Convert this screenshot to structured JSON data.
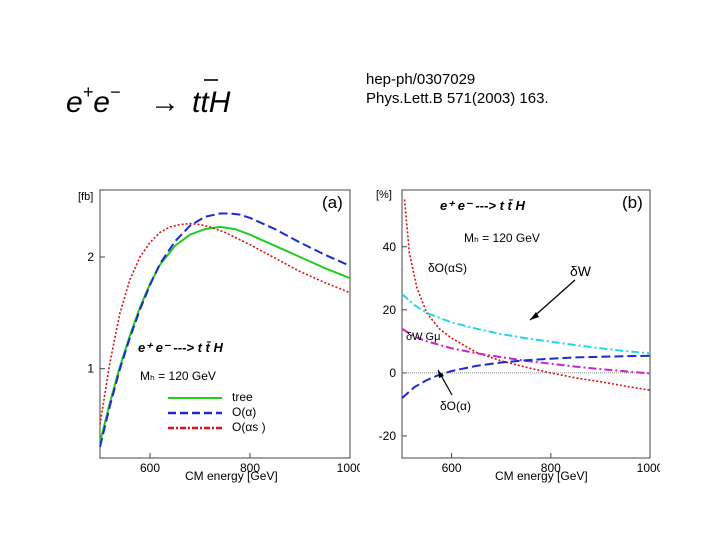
{
  "header": {
    "formula": {
      "lhs_e1": "e",
      "lhs_sup1": "+",
      "lhs_e2": "e",
      "lhs_sup2": "−",
      "arrow": "→",
      "t1": "t",
      "t2": "t",
      "h": "H"
    },
    "reference_line1": "hep-ph/0307029",
    "reference_line2": "Phys.Lett.B 571(2003) 163."
  },
  "chart_data": [
    {
      "type": "line",
      "panel_label": "(a)",
      "title": "",
      "ylabel": "[fb]",
      "xlabel": "CM energy [GeV]",
      "xlim": [
        500,
        1000
      ],
      "ylim": [
        0.2,
        2.6
      ],
      "x_ticks": [
        600,
        800,
        1000
      ],
      "y_ticks": [
        1,
        2
      ],
      "process_label": "e⁺ e⁻ ---> t t̄ H",
      "mass_label": "Mₕ = 120 GeV",
      "legend": [
        "tree",
        "O(α)",
        "O(αs )"
      ],
      "series": [
        {
          "name": "tree",
          "color": "#22cc22",
          "style": "solid",
          "x": [
            500,
            520,
            540,
            560,
            580,
            600,
            620,
            650,
            680,
            710,
            740,
            770,
            800,
            850,
            900,
            950,
            1000
          ],
          "y": [
            0.34,
            0.7,
            1.02,
            1.3,
            1.55,
            1.76,
            1.93,
            2.1,
            2.2,
            2.25,
            2.27,
            2.25,
            2.2,
            2.1,
            2.0,
            1.9,
            1.81
          ]
        },
        {
          "name": "O(α)",
          "color": "#1b2ad2",
          "style": "dashed",
          "x": [
            500,
            520,
            540,
            560,
            580,
            600,
            620,
            650,
            680,
            710,
            740,
            760,
            780,
            800,
            850,
            900,
            950,
            1000
          ],
          "y": [
            0.3,
            0.67,
            1.0,
            1.28,
            1.53,
            1.75,
            1.94,
            2.14,
            2.28,
            2.36,
            2.39,
            2.39,
            2.38,
            2.35,
            2.25,
            2.13,
            2.02,
            1.92
          ]
        },
        {
          "name": "O(αs )",
          "color": "#dd1111",
          "style": "dotted",
          "x": [
            500,
            520,
            540,
            560,
            580,
            600,
            620,
            640,
            660,
            680,
            700,
            720,
            750,
            800,
            850,
            900,
            950,
            1000
          ],
          "y": [
            0.5,
            1.06,
            1.5,
            1.8,
            2.0,
            2.13,
            2.22,
            2.27,
            2.29,
            2.3,
            2.29,
            2.27,
            2.22,
            2.11,
            1.99,
            1.87,
            1.77,
            1.68
          ]
        }
      ]
    },
    {
      "type": "line",
      "panel_label": "(b)",
      "title": "",
      "ylabel": "[%]",
      "xlabel": "CM energy [GeV]",
      "xlim": [
        500,
        1000
      ],
      "ylim": [
        -27,
        58
      ],
      "x_ticks": [
        600,
        800,
        1000
      ],
      "y_ticks": [
        -20,
        0,
        20,
        40
      ],
      "process_label": "e⁺ e⁻ ---> t t̄ H",
      "mass_label": "Mₕ = 120 GeV",
      "annotations": [
        "δO(αS)",
        "δW",
        "δW Gμ",
        "δO(α)"
      ],
      "series": [
        {
          "name": "δO(αS)",
          "color": "#dd1111",
          "style": "dotted",
          "x": [
            505,
            515,
            530,
            550,
            575,
            600,
            650,
            700,
            750,
            800,
            850,
            900,
            950,
            1000
          ],
          "y": [
            55,
            38,
            27,
            19,
            14,
            11,
            6.5,
            3.8,
            1.8,
            0,
            -1.6,
            -2.8,
            -4.2,
            -5.5
          ]
        },
        {
          "name": "δW",
          "color": "#22d8e8",
          "style": "dashdot",
          "x": [
            500,
            525,
            550,
            600,
            650,
            700,
            750,
            800,
            850,
            900,
            950,
            1000
          ],
          "y": [
            25,
            21.5,
            19,
            16,
            14,
            12.3,
            11,
            9.9,
            8.8,
            7.8,
            6.9,
            6.2
          ]
        },
        {
          "name": "δW Gμ",
          "color": "#cc22cc",
          "style": "dashdot",
          "x": [
            500,
            525,
            550,
            600,
            650,
            700,
            750,
            800,
            850,
            900,
            950,
            1000
          ],
          "y": [
            14,
            11.5,
            10,
            7.8,
            6.2,
            5,
            3.8,
            2.9,
            2.0,
            1.2,
            0.5,
            -0.2
          ]
        },
        {
          "name": "δO(α)",
          "color": "#1b2ad2",
          "style": "dashed",
          "x": [
            500,
            525,
            550,
            575,
            600,
            650,
            700,
            750,
            800,
            850,
            900,
            950,
            1000
          ],
          "y": [
            -8,
            -4.5,
            -2.3,
            -0.6,
            0.6,
            2.2,
            3.3,
            4.0,
            4.5,
            4.9,
            5.1,
            5.3,
            5.4
          ]
        }
      ]
    }
  ]
}
